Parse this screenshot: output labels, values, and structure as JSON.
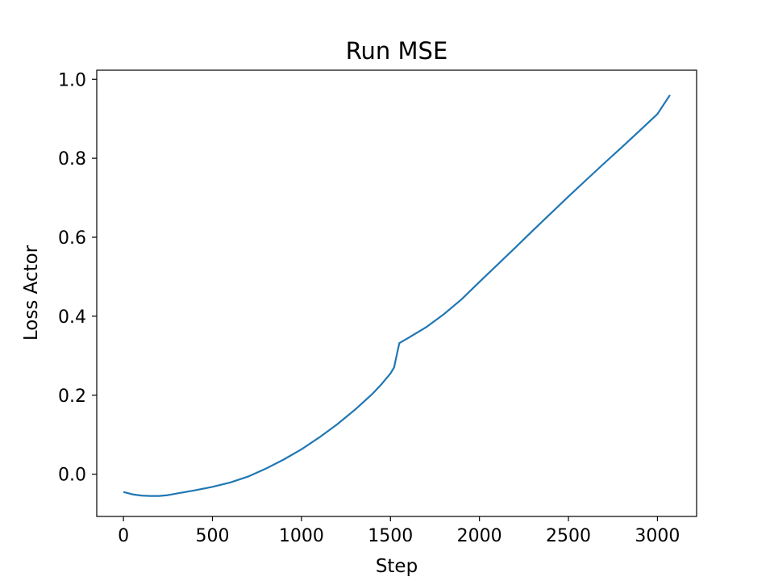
{
  "chart_data": {
    "type": "line",
    "title": "Run MSE",
    "xlabel": "Step",
    "ylabel": "Loss Actor",
    "xlim": [
      -150,
      3220
    ],
    "ylim": [
      -0.107,
      1.023
    ],
    "xticks": [
      0,
      500,
      1000,
      1500,
      2000,
      2500,
      3000
    ],
    "xtick_labels": [
      "0",
      "500",
      "1000",
      "1500",
      "2000",
      "2500",
      "3000"
    ],
    "yticks": [
      0.0,
      0.2,
      0.4,
      0.6,
      0.8,
      1.0
    ],
    "ytick_labels": [
      "0.0",
      "0.2",
      "0.4",
      "0.6",
      "0.8",
      "1.0"
    ],
    "grid": false,
    "legend": "none",
    "color": "#1f77b4",
    "series": [
      {
        "x": [
          0,
          50,
          100,
          150,
          200,
          250,
          300,
          400,
          500,
          600,
          700,
          800,
          900,
          1000,
          1100,
          1200,
          1300,
          1400,
          1450,
          1500,
          1520,
          1550,
          1600,
          1700,
          1800,
          1900,
          2000,
          2100,
          2200,
          2300,
          2400,
          2500,
          2600,
          2700,
          2800,
          2900,
          3000,
          3070
        ],
        "y": [
          -0.045,
          -0.051,
          -0.054,
          -0.055,
          -0.055,
          -0.053,
          -0.049,
          -0.041,
          -0.032,
          -0.021,
          -0.006,
          0.014,
          0.037,
          0.063,
          0.093,
          0.126,
          0.163,
          0.204,
          0.228,
          0.255,
          0.27,
          0.332,
          0.345,
          0.372,
          0.405,
          0.443,
          0.487,
          0.53,
          0.573,
          0.617,
          0.66,
          0.703,
          0.745,
          0.787,
          0.828,
          0.87,
          0.912,
          0.96
        ]
      }
    ]
  }
}
